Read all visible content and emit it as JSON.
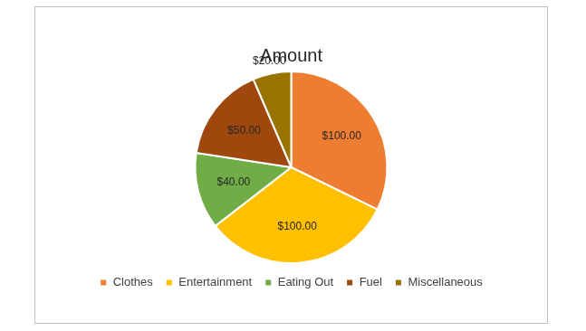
{
  "chart_data": {
    "type": "pie",
    "title": "Amount",
    "categories": [
      "Clothes",
      "Entertainment",
      "Eating Out",
      "Fuel",
      "Miscellaneous"
    ],
    "values": [
      100,
      100,
      40,
      50,
      20
    ],
    "value_labels": [
      "$100.00",
      "$100.00",
      "$40.00",
      "$50.00",
      "$20.00"
    ],
    "colors": [
      "#ed7d31",
      "#ffc000",
      "#70ad47",
      "#9e480e",
      "#997300"
    ],
    "legend": "bottom",
    "data_labels": true
  }
}
